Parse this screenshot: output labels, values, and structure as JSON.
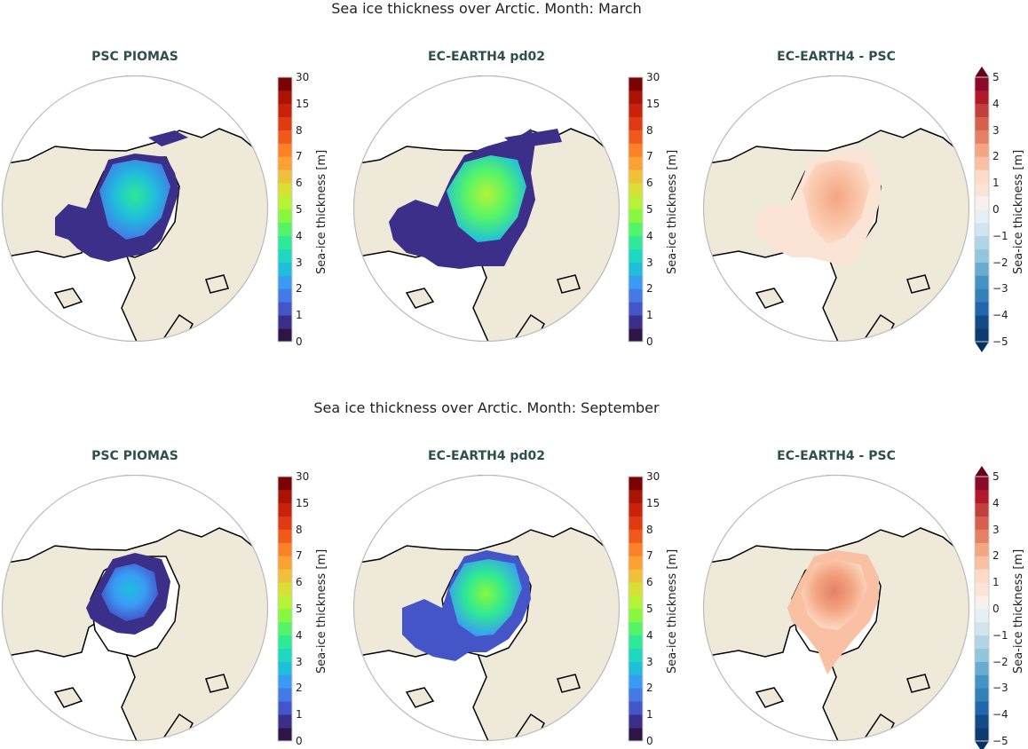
{
  "rows": [
    {
      "suptitle": "Sea ice thickness over Arctic. Month: March",
      "panels": [
        {
          "title": "PSC PIOMAS",
          "colorbar": "sequential",
          "ice": "obs_march"
        },
        {
          "title": "EC-EARTH4 pd02",
          "colorbar": "sequential",
          "ice": "model_march"
        },
        {
          "title": "EC-EARTH4 -  PSC",
          "colorbar": "diverging",
          "ice": "diff_march"
        }
      ]
    },
    {
      "suptitle": "Sea ice thickness over Arctic. Month: September",
      "panels": [
        {
          "title": "PSC PIOMAS",
          "colorbar": "sequential",
          "ice": "obs_sept"
        },
        {
          "title": "EC-EARTH4 pd02",
          "colorbar": "sequential",
          "ice": "model_sept"
        },
        {
          "title": "EC-EARTH4 -  PSC",
          "colorbar": "diverging",
          "ice": "diff_sept"
        }
      ]
    }
  ],
  "colorbars": {
    "sequential": {
      "label": "Sea-ice thickness [m]",
      "ticks": [
        "0",
        "1",
        "2",
        "3",
        "4",
        "5",
        "6",
        "7",
        "8",
        "15",
        "30"
      ],
      "extend": "neither",
      "colors": [
        "#2f1547",
        "#3b2f8a",
        "#4455c8",
        "#4479e8",
        "#3a9bf5",
        "#1fbfdc",
        "#1fd8c0",
        "#2ee996",
        "#53f46a",
        "#87f73f",
        "#b4f335",
        "#d8e035",
        "#efc13a",
        "#fba235",
        "#fb8127",
        "#ef5a1c",
        "#df3a11",
        "#c8230a",
        "#a91404",
        "#7a0403"
      ]
    },
    "diverging": {
      "label": "Sea-ice thickness [m]",
      "ticks": [
        "−5",
        "−4",
        "−3",
        "−2",
        "−1",
        "0",
        "1",
        "2",
        "3",
        "4",
        "5"
      ],
      "extend": "both",
      "colors": [
        "#0b3b70",
        "#134b87",
        "#2166ac",
        "#3480b9",
        "#4393c3",
        "#6aacd0",
        "#92c5de",
        "#b1d5e7",
        "#d1e5f0",
        "#e5eff5",
        "#f7f1ee",
        "#fbe3d6",
        "#fddbc7",
        "#f9c0a3",
        "#f4a582",
        "#e48066",
        "#d6604d",
        "#c13f3d",
        "#b2182b",
        "#8a0b25"
      ],
      "under": "#053061",
      "over": "#67001f"
    }
  },
  "map_colors": {
    "land": "#efe9d9",
    "ocean": "#ffffff",
    "coast": "#000000",
    "frame": "#bbbbbb"
  }
}
